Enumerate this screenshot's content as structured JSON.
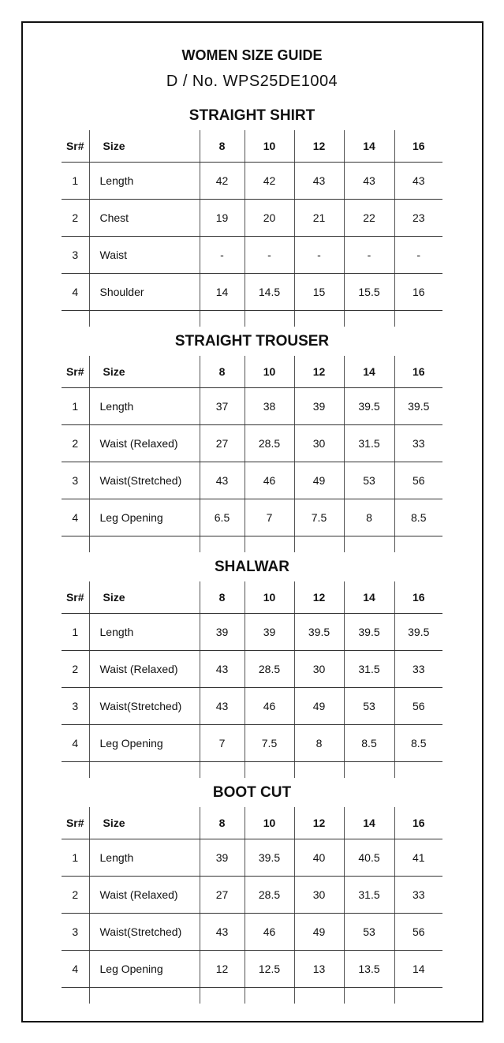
{
  "title": "WOMEN SIZE GUIDE",
  "design_no": "D / No. WPS25DE1004",
  "sections": [
    {
      "title": "STRAIGHT SHIRT",
      "headers": [
        "Sr#",
        "Size",
        "8",
        "10",
        "12",
        "14",
        "16"
      ],
      "rows": [
        [
          "1",
          "Length",
          "42",
          "42",
          "43",
          "43",
          "43"
        ],
        [
          "2",
          "Chest",
          "19",
          "20",
          "21",
          "22",
          "23"
        ],
        [
          "3",
          "Waist",
          "-",
          "-",
          "-",
          "-",
          "-"
        ],
        [
          "4",
          "Shoulder",
          "14",
          "14.5",
          "15",
          "15.5",
          "16"
        ]
      ]
    },
    {
      "title": "STRAIGHT TROUSER",
      "headers": [
        "Sr#",
        "Size",
        "8",
        "10",
        "12",
        "14",
        "16"
      ],
      "rows": [
        [
          "1",
          "Length",
          "37",
          "38",
          "39",
          "39.5",
          "39.5"
        ],
        [
          "2",
          "Waist (Relaxed)",
          "27",
          "28.5",
          "30",
          "31.5",
          "33"
        ],
        [
          "3",
          "Waist(Stretched)",
          "43",
          "46",
          "49",
          "53",
          "56"
        ],
        [
          "4",
          "Leg Opening",
          "6.5",
          "7",
          "7.5",
          "8",
          "8.5"
        ]
      ]
    },
    {
      "title": "SHALWAR",
      "headers": [
        "Sr#",
        "Size",
        "8",
        "10",
        "12",
        "14",
        "16"
      ],
      "rows": [
        [
          "1",
          "Length",
          "39",
          "39",
          "39.5",
          "39.5",
          "39.5"
        ],
        [
          "2",
          "Waist (Relaxed)",
          "43",
          "28.5",
          "30",
          "31.5",
          "33"
        ],
        [
          "3",
          "Waist(Stretched)",
          "43",
          "46",
          "49",
          "53",
          "56"
        ],
        [
          "4",
          "Leg Opening",
          "7",
          "7.5",
          "8",
          "8.5",
          "8.5"
        ]
      ]
    },
    {
      "title": "BOOT CUT",
      "headers": [
        "Sr#",
        "Size",
        "8",
        "10",
        "12",
        "14",
        "16"
      ],
      "rows": [
        [
          "1",
          "Length",
          "39",
          "39.5",
          "40",
          "40.5",
          "41"
        ],
        [
          "2",
          "Waist (Relaxed)",
          "27",
          "28.5",
          "30",
          "31.5",
          "33"
        ],
        [
          "3",
          "Waist(Stretched)",
          "43",
          "46",
          "49",
          "53",
          "56"
        ],
        [
          "4",
          "Leg Opening",
          "12",
          "12.5",
          "13",
          "13.5",
          "14"
        ]
      ]
    }
  ]
}
